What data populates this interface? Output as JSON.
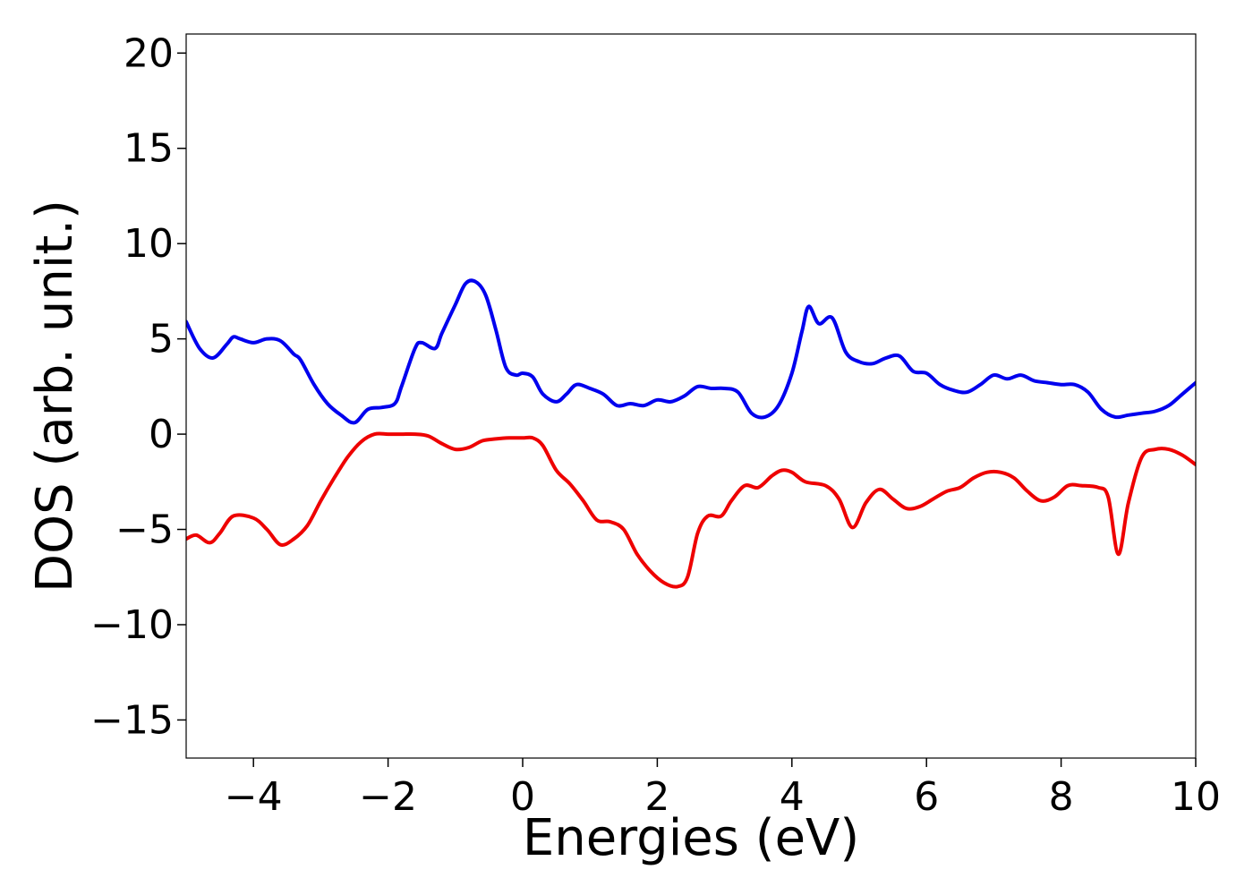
{
  "chart_data": {
    "type": "line",
    "title": "",
    "xlabel": "Energies (eV)",
    "ylabel": "DOS (arb. unit.)",
    "xlim": [
      -5,
      10
    ],
    "ylim": [
      -17,
      21
    ],
    "xticks": [
      -4,
      -2,
      0,
      2,
      4,
      6,
      8,
      10
    ],
    "xtick_labels": [
      "−4",
      "−2",
      "0",
      "2",
      "4",
      "6",
      "8",
      "10"
    ],
    "yticks": [
      -15,
      -10,
      -5,
      0,
      5,
      10,
      15,
      20
    ],
    "ytick_labels": [
      "−15",
      "−10",
      "−5",
      "0",
      "5",
      "10",
      "15",
      "20"
    ],
    "grid": false,
    "legend": "none",
    "series": [
      {
        "color": "#0000ee",
        "x": [
          -5.0,
          -4.8,
          -4.6,
          -4.4,
          -4.3,
          -4.2,
          -4.0,
          -3.8,
          -3.6,
          -3.4,
          -3.3,
          -3.1,
          -2.9,
          -2.7,
          -2.5,
          -2.3,
          -2.1,
          -1.9,
          -1.8,
          -1.6,
          -1.5,
          -1.3,
          -1.2,
          -1.0,
          -0.85,
          -0.7,
          -0.55,
          -0.4,
          -0.25,
          -0.1,
          0.0,
          0.15,
          0.3,
          0.5,
          0.65,
          0.8,
          1.0,
          1.2,
          1.4,
          1.6,
          1.8,
          2.0,
          2.2,
          2.4,
          2.6,
          2.8,
          3.0,
          3.2,
          3.4,
          3.6,
          3.8,
          4.0,
          4.15,
          4.25,
          4.4,
          4.6,
          4.8,
          5.0,
          5.2,
          5.4,
          5.6,
          5.8,
          6.0,
          6.2,
          6.4,
          6.6,
          6.8,
          7.0,
          7.2,
          7.4,
          7.6,
          7.8,
          8.0,
          8.2,
          8.4,
          8.6,
          8.8,
          9.0,
          9.2,
          9.4,
          9.6,
          9.8,
          10.0
        ],
        "y": [
          5.9,
          4.5,
          4.0,
          4.7,
          5.1,
          5.0,
          4.8,
          5.0,
          4.9,
          4.2,
          3.9,
          2.6,
          1.6,
          1.0,
          0.6,
          1.3,
          1.4,
          1.6,
          2.5,
          4.5,
          4.8,
          4.5,
          5.3,
          6.8,
          7.9,
          8.0,
          7.3,
          5.5,
          3.5,
          3.1,
          3.2,
          3.0,
          2.1,
          1.7,
          2.1,
          2.6,
          2.4,
          2.1,
          1.5,
          1.6,
          1.5,
          1.8,
          1.7,
          2.0,
          2.5,
          2.4,
          2.4,
          2.2,
          1.1,
          0.9,
          1.5,
          3.2,
          5.4,
          6.7,
          5.8,
          6.1,
          4.3,
          3.8,
          3.7,
          4.0,
          4.1,
          3.3,
          3.2,
          2.6,
          2.3,
          2.2,
          2.6,
          3.1,
          2.9,
          3.1,
          2.8,
          2.7,
          2.6,
          2.6,
          2.2,
          1.3,
          0.9,
          1.0,
          1.1,
          1.2,
          1.5,
          2.1,
          2.7
        ]
      },
      {
        "color": "#ee0000",
        "x": [
          -5.0,
          -4.85,
          -4.65,
          -4.5,
          -4.3,
          -4.0,
          -3.8,
          -3.6,
          -3.4,
          -3.2,
          -3.0,
          -2.8,
          -2.6,
          -2.4,
          -2.2,
          -2.0,
          -1.8,
          -1.6,
          -1.4,
          -1.2,
          -1.0,
          -0.8,
          -0.6,
          -0.4,
          -0.2,
          0.0,
          0.15,
          0.3,
          0.5,
          0.7,
          0.9,
          1.1,
          1.3,
          1.5,
          1.7,
          1.9,
          2.1,
          2.3,
          2.45,
          2.6,
          2.75,
          2.95,
          3.1,
          3.3,
          3.5,
          3.7,
          3.85,
          4.0,
          4.2,
          4.5,
          4.7,
          4.9,
          5.1,
          5.3,
          5.5,
          5.7,
          5.9,
          6.1,
          6.3,
          6.5,
          6.7,
          6.9,
          7.1,
          7.3,
          7.5,
          7.7,
          7.9,
          8.1,
          8.3,
          8.55,
          8.7,
          8.85,
          9.0,
          9.2,
          9.4,
          9.6,
          9.8,
          10.0
        ],
        "y": [
          -5.5,
          -5.3,
          -5.7,
          -5.2,
          -4.3,
          -4.4,
          -5.0,
          -5.8,
          -5.5,
          -4.8,
          -3.5,
          -2.3,
          -1.2,
          -0.4,
          0.0,
          0.0,
          0.0,
          0.0,
          -0.1,
          -0.5,
          -0.8,
          -0.7,
          -0.35,
          -0.25,
          -0.2,
          -0.2,
          -0.2,
          -0.6,
          -1.9,
          -2.6,
          -3.5,
          -4.5,
          -4.6,
          -5.0,
          -6.3,
          -7.2,
          -7.8,
          -8.0,
          -7.5,
          -5.2,
          -4.3,
          -4.3,
          -3.5,
          -2.7,
          -2.8,
          -2.2,
          -1.9,
          -2.0,
          -2.5,
          -2.7,
          -3.4,
          -4.9,
          -3.6,
          -2.9,
          -3.4,
          -3.9,
          -3.8,
          -3.4,
          -3.0,
          -2.8,
          -2.3,
          -2.0,
          -2.0,
          -2.3,
          -3.0,
          -3.5,
          -3.3,
          -2.7,
          -2.7,
          -2.8,
          -3.3,
          -6.3,
          -3.6,
          -1.2,
          -0.8,
          -0.8,
          -1.1,
          -1.6
        ]
      }
    ]
  }
}
